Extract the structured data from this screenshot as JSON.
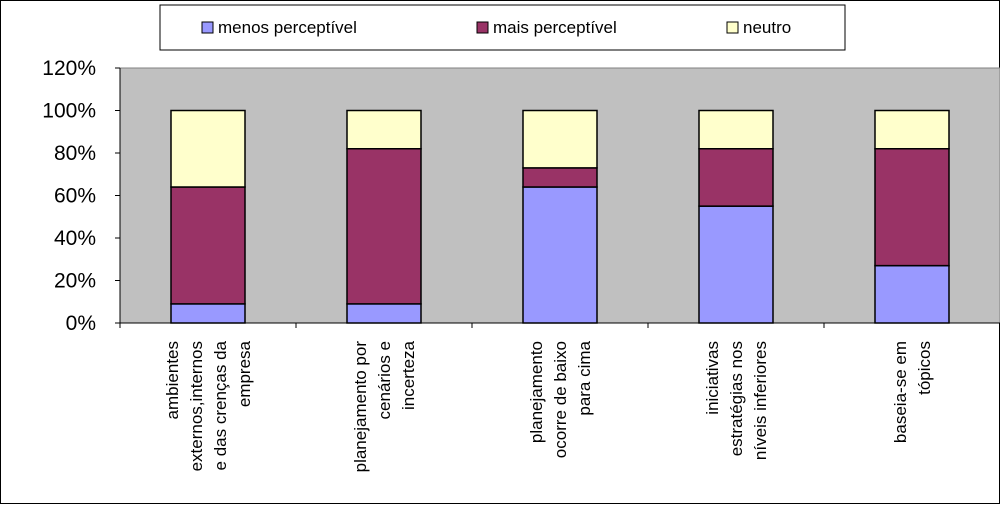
{
  "chart_data": {
    "type": "bar",
    "stacked": true,
    "title": "",
    "xlabel": "",
    "ylabel": "",
    "ylim": [
      0,
      1.2
    ],
    "yticks": [
      "0%",
      "20%",
      "40%",
      "60%",
      "80%",
      "100%",
      "120%"
    ],
    "grid": false,
    "legend_position": "top",
    "categories": [
      [
        "ambientes",
        "externos,internos",
        "e das crenças da",
        "empresa"
      ],
      [
        "planejamento por",
        "cenários e",
        "incerteza"
      ],
      [
        "planejamento",
        "ocorre de baixo",
        "para cima"
      ],
      [
        "iniciativas",
        "estratégias nos",
        "níveis inferiores"
      ],
      [
        "baseia-se em",
        "tópicos"
      ]
    ],
    "series": [
      {
        "name": "menos perceptível",
        "color": "#9999ff",
        "values": [
          0.09,
          0.09,
          0.64,
          0.55,
          0.27
        ]
      },
      {
        "name": "mais perceptível",
        "color": "#993366",
        "values": [
          0.55,
          0.73,
          0.09,
          0.27,
          0.55
        ]
      },
      {
        "name": "neutro",
        "color": "#ffffcc",
        "values": [
          0.36,
          0.18,
          0.27,
          0.18,
          0.18
        ]
      }
    ],
    "colors": {
      "plot_background": "#c0c0c0",
      "page_background": "#ffffff",
      "stroke": "#000000"
    }
  }
}
